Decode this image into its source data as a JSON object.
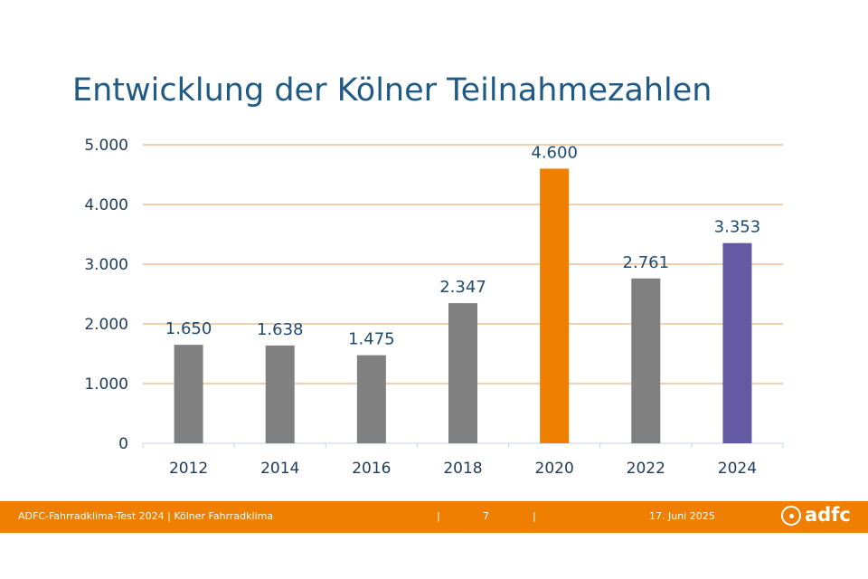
{
  "slide": {
    "title": "Entwicklung der Kölner Teilnahmezahlen"
  },
  "chart_data": {
    "type": "bar",
    "categories": [
      "2012",
      "2014",
      "2016",
      "2018",
      "2020",
      "2022",
      "2024"
    ],
    "values": [
      1650,
      1638,
      1475,
      2347,
      4600,
      2761,
      3353
    ],
    "data_labels": [
      "1.650",
      "1.638",
      "1.475",
      "2.347",
      "4.600",
      "2.761",
      "3.353"
    ],
    "y_ticks": [
      "0",
      "1.000",
      "2.000",
      "3.000",
      "4.000",
      "5.000"
    ],
    "ylim": [
      0,
      5000
    ],
    "grid": true,
    "title": "Entwicklung der Kölner Teilnahmezahlen",
    "xlabel": "",
    "ylabel": "",
    "bar_colors": [
      "#808080",
      "#808080",
      "#808080",
      "#808080",
      "#ee7f00",
      "#808080",
      "#6459a2"
    ],
    "colors": {
      "gridline": "#e0a060",
      "axis_text": "#1f3a5a",
      "label_text": "#1f4a70",
      "axis_line": "#bfd4ea"
    }
  },
  "footer": {
    "left_text": "ADFC-Fahrradklima-Test 2024 | Kölner Fahrradklima",
    "separator": "|",
    "page_number": "7",
    "date": "17. Juni 2025",
    "logo_text": "adfc",
    "background": "#ee7f00"
  }
}
